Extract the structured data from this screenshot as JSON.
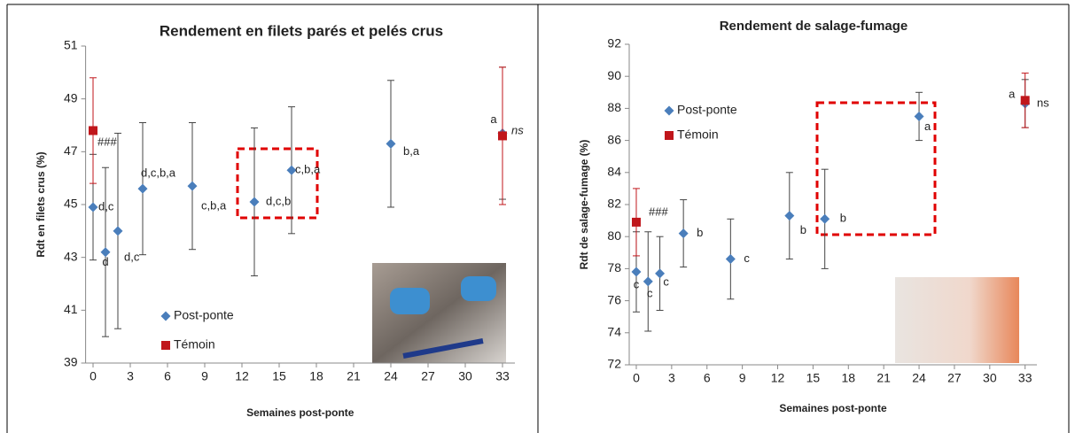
{
  "chart_data": [
    {
      "type": "scatter",
      "title": "Rendement en filets parés et pelés crus",
      "x_label": "Semaines post-ponte",
      "y_label": "Rdt en filets crus (%)",
      "xlim": [
        -0.6,
        34
      ],
      "ylim": [
        39,
        51
      ],
      "xticks": [
        0,
        3,
        6,
        9,
        12,
        15,
        18,
        21,
        24,
        27,
        30,
        33
      ],
      "yticks": [
        39,
        41,
        43,
        45,
        47,
        49,
        51
      ],
      "grid": false,
      "legend": true,
      "series": [
        {
          "name": "Post-ponte",
          "color": "#4a7ebb",
          "marker": "diamond",
          "error_color": "#444444",
          "x": [
            0,
            1,
            2,
            4,
            8,
            13,
            16,
            24,
            33
          ],
          "values": [
            44.9,
            43.2,
            44.0,
            45.6,
            45.7,
            45.1,
            46.3,
            47.3,
            47.7
          ],
          "errors": [
            2.0,
            3.2,
            3.7,
            2.5,
            2.4,
            2.8,
            2.4,
            2.4,
            2.5
          ],
          "point_labels": [
            "d,c",
            "d",
            "d,c",
            "d,c,b,a",
            "c,b,a",
            "d,c,b",
            "c,b,a",
            "b,a",
            "a"
          ]
        },
        {
          "name": "Témoin",
          "color": "#c0161b",
          "marker": "square",
          "error_color": "#c0161b",
          "x": [
            0,
            33
          ],
          "values": [
            47.8,
            47.6
          ],
          "errors": [
            2.0,
            2.6
          ]
        }
      ],
      "annotations": [
        "###",
        "ns"
      ]
    },
    {
      "type": "scatter",
      "title": "Rendement de salage-fumage",
      "x_label": "Semaines post-ponte",
      "y_label": "Rdt de salage-fumage (%)",
      "xlim": [
        -0.6,
        34
      ],
      "ylim": [
        72,
        92
      ],
      "xticks": [
        0,
        3,
        6,
        9,
        12,
        15,
        18,
        21,
        24,
        27,
        30,
        33
      ],
      "yticks": [
        72,
        74,
        76,
        78,
        80,
        82,
        84,
        86,
        88,
        90,
        92
      ],
      "grid": false,
      "legend": true,
      "series": [
        {
          "name": "Post-ponte",
          "color": "#4a7ebb",
          "marker": "diamond",
          "error_color": "#444444",
          "x": [
            0,
            1,
            2,
            4,
            8,
            13,
            16,
            24,
            33
          ],
          "values": [
            77.8,
            77.2,
            77.7,
            80.2,
            78.6,
            81.3,
            81.1,
            87.5,
            88.3
          ],
          "errors": [
            2.5,
            3.1,
            2.3,
            2.1,
            2.5,
            2.7,
            3.1,
            1.5,
            1.5
          ],
          "point_labels": [
            "c",
            "c",
            "c",
            "b",
            "c",
            "b",
            "b",
            "a",
            "a"
          ]
        },
        {
          "name": "Témoin",
          "color": "#c0161b",
          "marker": "square",
          "error_color": "#c0161b",
          "x": [
            0,
            33
          ],
          "values": [
            80.9,
            88.5
          ],
          "errors": [
            2.1,
            1.7
          ]
        }
      ],
      "annotations": [
        "###",
        "ns"
      ]
    }
  ]
}
